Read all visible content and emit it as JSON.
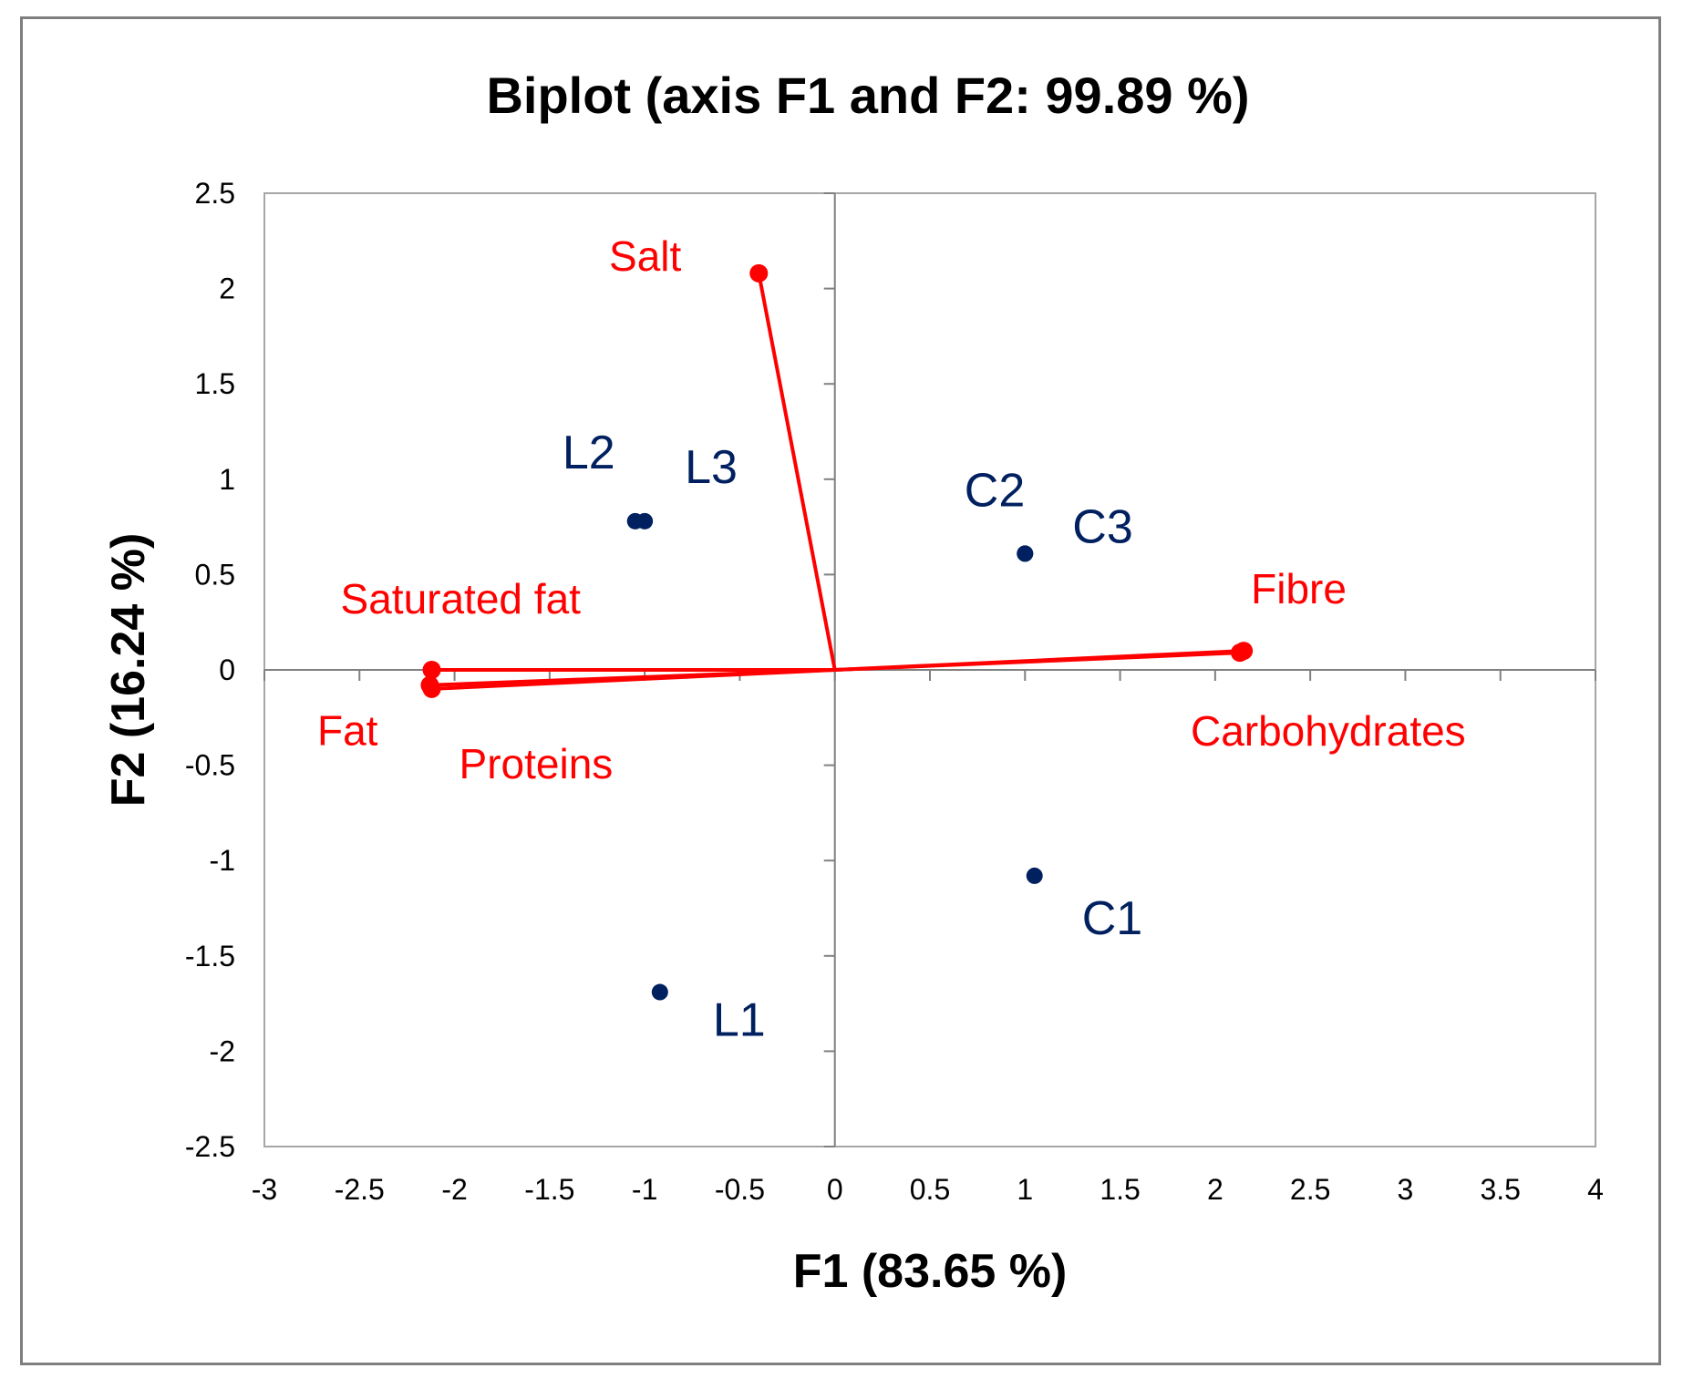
{
  "chart_data": {
    "type": "scatter",
    "title": "Biplot (axis F1 and F2: 99.89 %)",
    "xlabel": "F1 (83.65 %)",
    "ylabel": "F2 (16.24 %)",
    "xlim": [
      -3,
      4
    ],
    "ylim": [
      -2.5,
      2.5
    ],
    "xticks": [
      -3,
      -2.5,
      -2,
      -1.5,
      -1,
      -0.5,
      0,
      0.5,
      1,
      1.5,
      2,
      2.5,
      3,
      3.5,
      4
    ],
    "yticks": [
      -2.5,
      -2,
      -1.5,
      -1,
      -0.5,
      0,
      0.5,
      1,
      1.5,
      2,
      2.5
    ],
    "grid": false,
    "colors": {
      "variables": "#ff0000",
      "observations": "#002060",
      "axes": "#808080"
    },
    "variables": [
      {
        "name": "Salt",
        "x": -0.4,
        "y": 2.08
      },
      {
        "name": "Saturated fat",
        "x": -2.12,
        "y": 0.0
      },
      {
        "name": "Fat",
        "x": -2.13,
        "y": -0.08
      },
      {
        "name": "Proteins",
        "x": -2.12,
        "y": -0.1
      },
      {
        "name": "Fibre",
        "x": 2.15,
        "y": 0.1
      },
      {
        "name": "Carbohydrates",
        "x": 2.13,
        "y": 0.09
      }
    ],
    "observations": [
      {
        "name": "L1",
        "x": -0.92,
        "y": -1.69
      },
      {
        "name": "L2",
        "x": -1.05,
        "y": 0.78
      },
      {
        "name": "L3",
        "x": -1.0,
        "y": 0.78
      },
      {
        "name": "C1",
        "x": 1.05,
        "y": -1.08
      },
      {
        "name": "C2",
        "x": 1.0,
        "y": 0.61
      },
      {
        "name": "C3",
        "x": 1.0,
        "y": 0.61
      }
    ]
  }
}
